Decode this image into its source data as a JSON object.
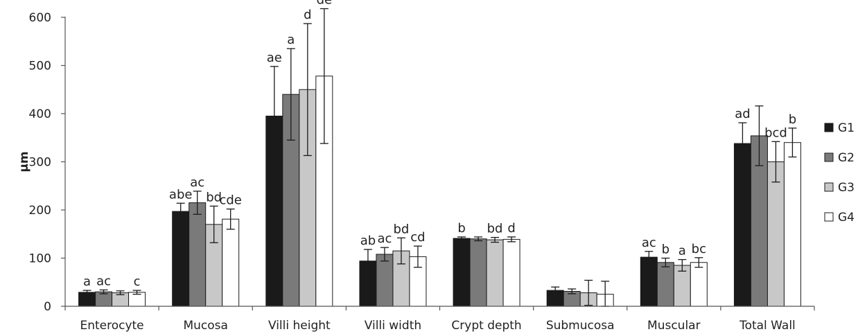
{
  "chart_data": {
    "type": "bar",
    "title": "",
    "xlabel": "",
    "ylabel": "µm",
    "ylim": [
      0,
      600
    ],
    "yticks": [
      0,
      100,
      200,
      300,
      400,
      500,
      600
    ],
    "grid": false,
    "legend_position": "right",
    "categories": [
      "Enterocyte",
      "Mucosa",
      "Villi height",
      "Villi width",
      "Crypt depth",
      "Submucosa",
      "Muscular",
      "Total Wall"
    ],
    "series": [
      {
        "name": "G1",
        "color": "#1a1a1a",
        "values": [
          29,
          197,
          395,
          94,
          141,
          33,
          102,
          338
        ],
        "errors": [
          4,
          17,
          103,
          24,
          3,
          7,
          12,
          43
        ],
        "labels": [
          "a",
          "abe",
          "ae",
          "ab",
          "b",
          "",
          "ac",
          "ad"
        ]
      },
      {
        "name": "G2",
        "color": "#7a7a7a",
        "values": [
          30,
          215,
          440,
          108,
          140,
          31,
          91,
          354
        ],
        "errors": [
          4,
          24,
          95,
          14,
          4,
          5,
          9,
          62
        ],
        "labels": [
          "ac",
          "ac",
          "a",
          "ac",
          "",
          "",
          "b",
          ""
        ]
      },
      {
        "name": "G3",
        "color": "#c8c8c8",
        "values": [
          28,
          170,
          450,
          115,
          138,
          28,
          85,
          300
        ],
        "errors": [
          4,
          38,
          137,
          27,
          5,
          26,
          12,
          42
        ],
        "labels": [
          "",
          "bd",
          "d",
          "bd",
          "bd",
          "",
          "a",
          "bcd"
        ]
      },
      {
        "name": "G4",
        "color": "#ffffff",
        "values": [
          29,
          181,
          478,
          103,
          139,
          25,
          91,
          340
        ],
        "errors": [
          4,
          21,
          140,
          22,
          5,
          27,
          10,
          30
        ],
        "labels": [
          "c",
          "cde",
          "de",
          "cd",
          "d",
          "",
          "bc",
          "b"
        ]
      }
    ]
  }
}
